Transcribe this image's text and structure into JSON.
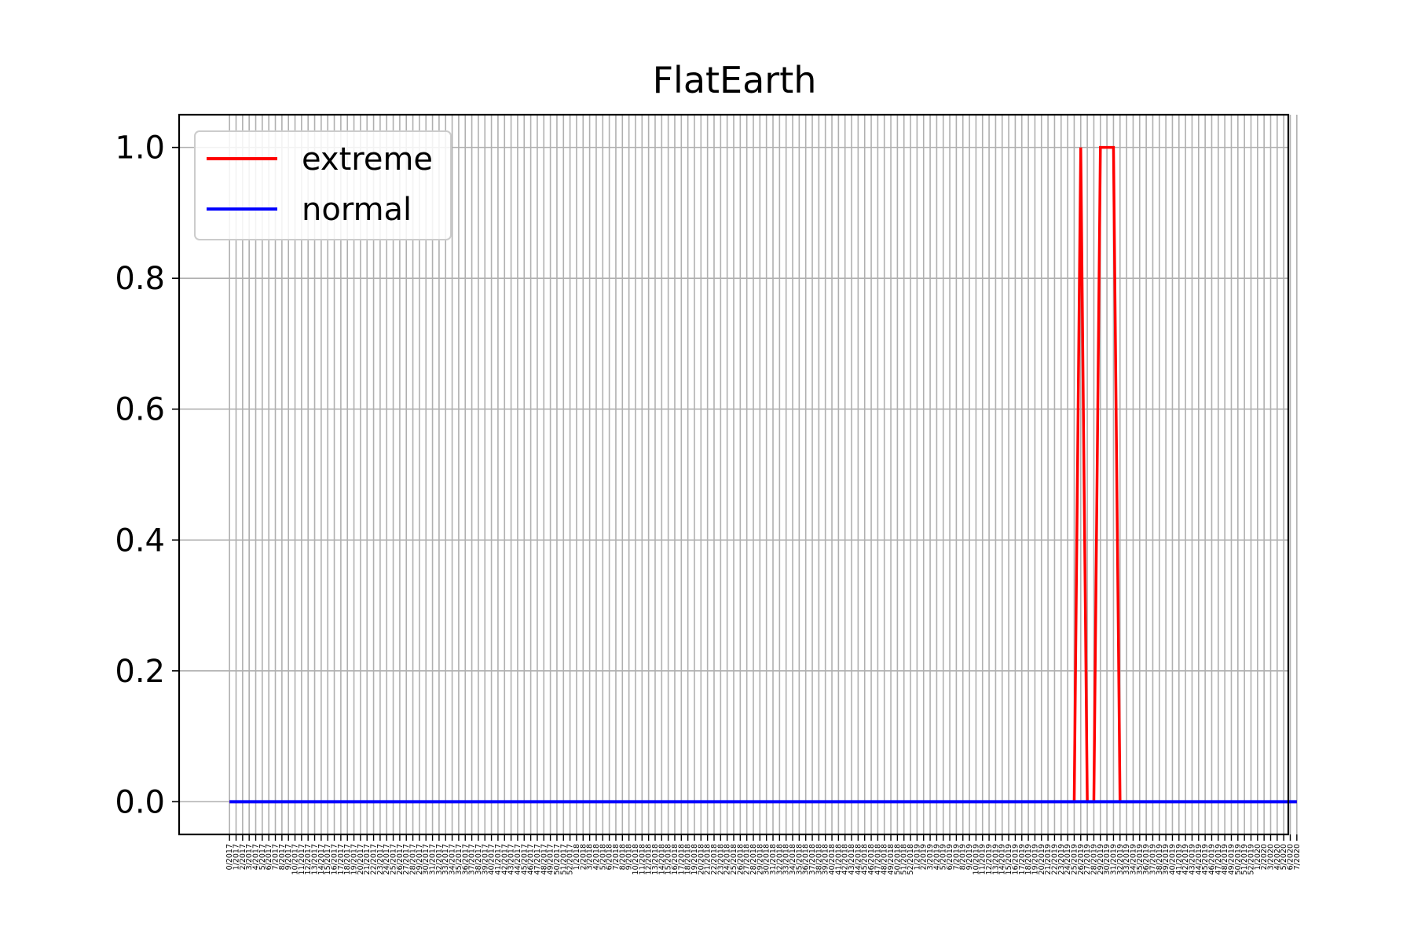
{
  "chart_data": {
    "type": "line",
    "title": "FlatEarth",
    "xlabel": "",
    "ylabel": "",
    "ylim": [
      -0.05,
      1.05
    ],
    "xlim": [
      -7.7,
      161.7
    ],
    "yticks": [
      0.0,
      0.2,
      0.4,
      0.6,
      0.8,
      1.0
    ],
    "ytick_labels": [
      "0.0",
      "0.2",
      "0.4",
      "0.6",
      "0.8",
      "1.0"
    ],
    "grid": true,
    "legend": {
      "position": "top-left"
    },
    "x_tick_labels": [
      "0/2017",
      "1/2017",
      "2/2017",
      "3/2017",
      "4/2017",
      "5/2017",
      "6/2017",
      "7/2017",
      "8/2017",
      "9/2017",
      "10/2017",
      "11/2017",
      "12/2017",
      "13/2017",
      "14/2017",
      "15/2017",
      "16/2017",
      "17/2017",
      "18/2017",
      "19/2017",
      "20/2017",
      "21/2017",
      "22/2017",
      "23/2017",
      "24/2017",
      "25/2017",
      "26/2017",
      "27/2017",
      "28/2017",
      "29/2017",
      "30/2017",
      "31/2017",
      "32/2017",
      "33/2017",
      "34/2017",
      "35/2017",
      "36/2017",
      "37/2017",
      "38/2017",
      "39/2017",
      "40/2017",
      "41/2017",
      "42/2017",
      "43/2017",
      "44/2017",
      "45/2017",
      "46/2017",
      "47/2017",
      "48/2017",
      "49/2017",
      "50/2017",
      "51/2017",
      "52/2017",
      "1/2018",
      "2/2018",
      "3/2018",
      "4/2018",
      "5/2018",
      "6/2018",
      "7/2018",
      "8/2018",
      "9/2018",
      "10/2018",
      "11/2018",
      "12/2018",
      "13/2018",
      "14/2018",
      "15/2018",
      "16/2018",
      "17/2018",
      "18/2018",
      "19/2018",
      "20/2018",
      "21/2018",
      "22/2018",
      "23/2018",
      "24/2018",
      "25/2018",
      "26/2018",
      "27/2018",
      "28/2018",
      "29/2018",
      "30/2018",
      "31/2018",
      "32/2018",
      "33/2018",
      "34/2018",
      "35/2018",
      "36/2018",
      "37/2018",
      "38/2018",
      "39/2018",
      "40/2018",
      "41/2018",
      "42/2018",
      "43/2018",
      "44/2018",
      "45/2018",
      "46/2018",
      "47/2018",
      "48/2018",
      "49/2018",
      "50/2018",
      "51/2018",
      "52/2018",
      "1/2019",
      "2/2019",
      "3/2019",
      "4/2019",
      "5/2019",
      "6/2019",
      "7/2019",
      "8/2019",
      "9/2019",
      "10/2019",
      "11/2019",
      "12/2019",
      "13/2019",
      "14/2019",
      "15/2019",
      "16/2019",
      "17/2019",
      "18/2019",
      "19/2019",
      "20/2019",
      "21/2019",
      "22/2019",
      "23/2019",
      "24/2019",
      "25/2019",
      "26/2019",
      "27/2019",
      "28/2019",
      "29/2019",
      "30/2019",
      "31/2019",
      "32/2019",
      "33/2019",
      "34/2019",
      "35/2019",
      "36/2019",
      "37/2019",
      "38/2019",
      "39/2019",
      "40/2019",
      "41/2019",
      "42/2019",
      "43/2019",
      "44/2019",
      "45/2019",
      "46/2019",
      "47/2019",
      "48/2019",
      "49/2019",
      "50/2019",
      "51/2019",
      "52/2019",
      "1/2020",
      "2/2020",
      "3/2020",
      "4/2020",
      "5/2020",
      "6/2020",
      "7/2020"
    ],
    "series": [
      {
        "name": "extreme",
        "color": "#ff0000",
        "spikes": [
          [
            130,
            131
          ],
          [
            132,
            133
          ],
          [
            133,
            134
          ],
          [
            134,
            135
          ],
          [
            135,
            136
          ]
        ],
        "description_values": "0 except listed index ranges at 1.0"
      },
      {
        "name": "normal",
        "color": "#0000ff",
        "constant": 0.0
      }
    ]
  }
}
